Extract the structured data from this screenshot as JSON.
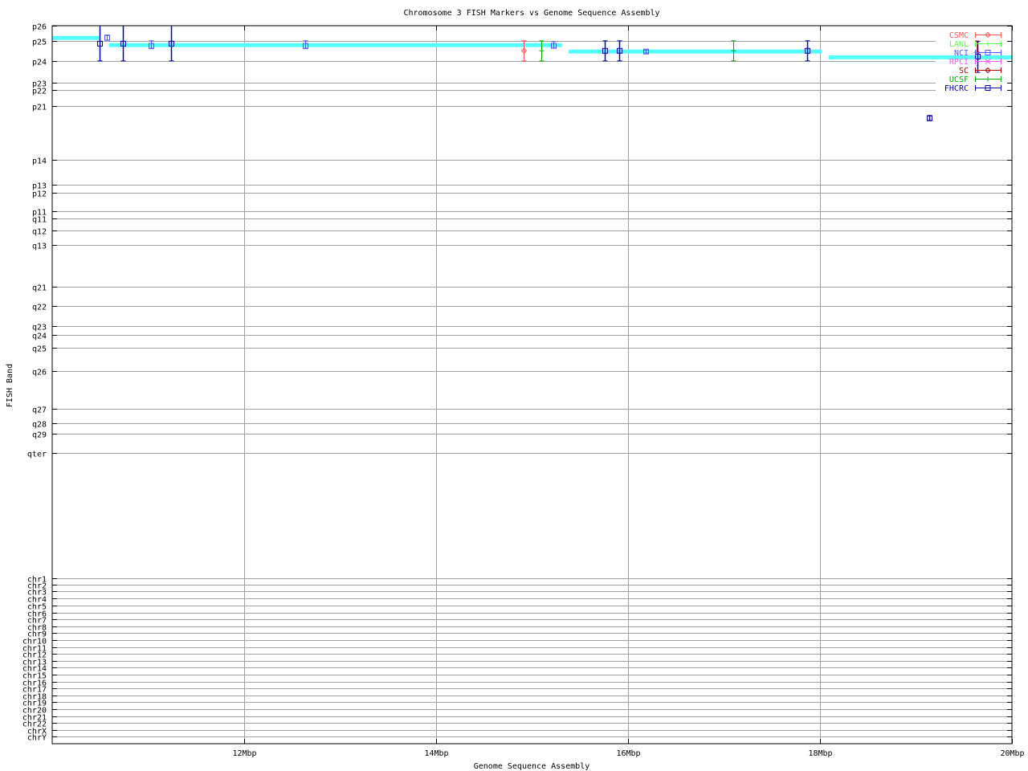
{
  "chart_data": {
    "type": "scatter",
    "title": "Chromosome 3 FISH Markers vs Genome Sequence Assembly",
    "xlabel": "Genome Sequence Assembly",
    "ylabel": "FISH Band",
    "xlim": [
      10,
      20
    ],
    "x_unit": "Mbp",
    "x_ticks": [
      {
        "value": 12,
        "label": "12Mbp"
      },
      {
        "value": 14,
        "label": "14Mbp"
      },
      {
        "value": 16,
        "label": "16Mbp"
      },
      {
        "value": 18,
        "label": "18Mbp"
      },
      {
        "value": 20,
        "label": "20Mbp"
      }
    ],
    "ylim": [
      0,
      1000
    ],
    "y_reversed": true,
    "y_ticks": [
      {
        "value": 0,
        "label": "p26"
      },
      {
        "value": 21,
        "label": "p25"
      },
      {
        "value": 49,
        "label": "p24"
      },
      {
        "value": 79,
        "label": "p23"
      },
      {
        "value": 89,
        "label": "p22"
      },
      {
        "value": 112,
        "label": "p21"
      },
      {
        "value": 187,
        "label": "p14"
      },
      {
        "value": 221,
        "label": "p13"
      },
      {
        "value": 233,
        "label": "p12"
      },
      {
        "value": 258,
        "label": "p11"
      },
      {
        "value": 268,
        "label": "q11"
      },
      {
        "value": 285,
        "label": "q12"
      },
      {
        "value": 305,
        "label": "q13"
      },
      {
        "value": 364,
        "label": "q21"
      },
      {
        "value": 390,
        "label": "q22"
      },
      {
        "value": 418,
        "label": "q23"
      },
      {
        "value": 431,
        "label": "q24"
      },
      {
        "value": 449,
        "label": "q25"
      },
      {
        "value": 481,
        "label": "q26"
      },
      {
        "value": 534,
        "label": "q27"
      },
      {
        "value": 554,
        "label": "q28"
      },
      {
        "value": 568,
        "label": "q29"
      },
      {
        "value": 595,
        "label": "qter"
      },
      {
        "value": 770,
        "label": "chr1"
      },
      {
        "value": 779,
        "label": "chr2"
      },
      {
        "value": 788,
        "label": "chr3"
      },
      {
        "value": 798,
        "label": "chr4"
      },
      {
        "value": 808,
        "label": "chr5"
      },
      {
        "value": 818,
        "label": "chr6"
      },
      {
        "value": 827,
        "label": "chr7"
      },
      {
        "value": 837,
        "label": "chr8"
      },
      {
        "value": 846,
        "label": "chr9"
      },
      {
        "value": 856,
        "label": "chr10"
      },
      {
        "value": 866,
        "label": "chr11"
      },
      {
        "value": 875,
        "label": "chr12"
      },
      {
        "value": 885,
        "label": "chr13"
      },
      {
        "value": 894,
        "label": "chr14"
      },
      {
        "value": 904,
        "label": "chr15"
      },
      {
        "value": 914,
        "label": "chr16"
      },
      {
        "value": 923,
        "label": "chr17"
      },
      {
        "value": 933,
        "label": "chr18"
      },
      {
        "value": 942,
        "label": "chr19"
      },
      {
        "value": 952,
        "label": "chr20"
      },
      {
        "value": 962,
        "label": "chr21"
      },
      {
        "value": 971,
        "label": "chr22"
      },
      {
        "value": 981,
        "label": "chrX"
      },
      {
        "value": 990,
        "label": "chrY"
      }
    ],
    "grid": true,
    "legend_position": "top-right",
    "assembly_segments": {
      "color": "#55ffff",
      "segments": [
        {
          "x0": 10.0,
          "x1": 10.5,
          "y": 17
        },
        {
          "x0": 10.59,
          "x1": 15.31,
          "y": 27
        },
        {
          "x0": 15.38,
          "x1": 18.02,
          "y": 36
        },
        {
          "x0": 18.09,
          "x1": 20.0,
          "y": 44
        }
      ]
    },
    "series": [
      {
        "name": "CSMC",
        "color": "#ff5555",
        "marker": "diamond",
        "points": [
          {
            "x": 14.91,
            "y": 35,
            "ylow": 21,
            "yhigh": 49
          },
          {
            "x": 19.63,
            "y": 37,
            "ylow": 21,
            "yhigh": 37
          }
        ]
      },
      {
        "name": "LANL",
        "color": "#55ff55",
        "marker": "plus",
        "points": []
      },
      {
        "name": "NCI",
        "color": "#5555ff",
        "marker": "square",
        "points": [
          {
            "x": 10.57,
            "y": 17,
            "ylow": 13,
            "yhigh": 20
          },
          {
            "x": 11.03,
            "y": 28,
            "ylow": 21,
            "yhigh": 32
          },
          {
            "x": 12.64,
            "y": 28,
            "ylow": 21,
            "yhigh": 32
          },
          {
            "x": 15.22,
            "y": 28,
            "ylow": 22,
            "yhigh": 31
          },
          {
            "x": 16.18,
            "y": 36,
            "ylow": 34,
            "yhigh": 38
          }
        ]
      },
      {
        "name": "RPCI",
        "color": "#ff55ff",
        "marker": "cross",
        "points": []
      },
      {
        "name": "SC",
        "color": "#aa0000",
        "marker": "diamond",
        "points": []
      },
      {
        "name": "UCSF",
        "color": "#00aa00",
        "marker": "plus",
        "points": [
          {
            "x": 15.1,
            "y": 35,
            "ylow": 21,
            "yhigh": 49
          },
          {
            "x": 17.1,
            "y": 35,
            "ylow": 21,
            "yhigh": 49
          }
        ]
      },
      {
        "name": "FHCRC",
        "color": "#0000aa",
        "marker": "square",
        "points": [
          {
            "x": 10.49,
            "y": 25,
            "ylow": 0,
            "yhigh": 49
          },
          {
            "x": 10.74,
            "y": 25,
            "ylow": 0,
            "yhigh": 49
          },
          {
            "x": 11.24,
            "y": 25,
            "ylow": 0,
            "yhigh": 49
          },
          {
            "x": 15.76,
            "y": 35,
            "ylow": 21,
            "yhigh": 49
          },
          {
            "x": 15.91,
            "y": 35,
            "ylow": 21,
            "yhigh": 49
          },
          {
            "x": 17.87,
            "y": 35,
            "ylow": 21,
            "yhigh": 49
          },
          {
            "x": 19.14,
            "y": 129,
            "ylow": 125,
            "yhigh": 132
          },
          {
            "x": 19.64,
            "y": 43,
            "ylow": 22,
            "yhigh": 65
          }
        ]
      }
    ]
  }
}
